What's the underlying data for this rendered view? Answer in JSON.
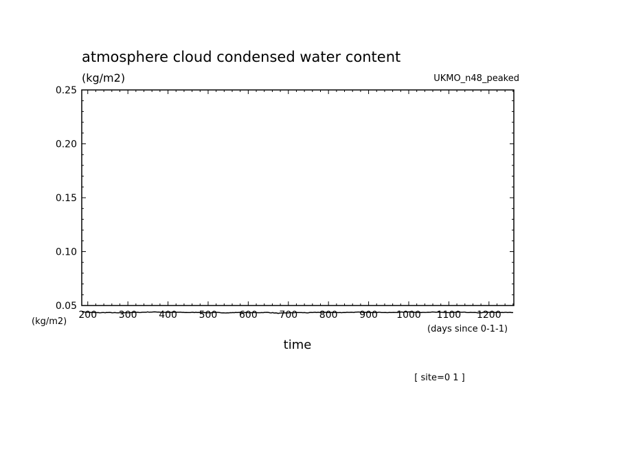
{
  "chart_data": {
    "type": "line",
    "title": "atmosphere cloud condensed water content",
    "units": "(kg/m2)",
    "model_label": "UKMO_n48_peaked",
    "xlabel": "time",
    "x_units": "(days since 0-1-1)",
    "y_side_units": "(kg/m2)",
    "footer": "[ site=0 1 ]",
    "xlim": [
      185,
      1262
    ],
    "ylim": [
      0.05,
      0.25
    ],
    "x_ticks": [
      200,
      300,
      400,
      500,
      600,
      700,
      800,
      900,
      1000,
      1100,
      1200
    ],
    "y_ticks": [
      0.05,
      0.1,
      0.15,
      0.2,
      0.25
    ],
    "y_tick_labels": [
      "0.05",
      "0.10",
      "0.15",
      "0.20",
      "0.25"
    ],
    "grid": false,
    "series": [
      {
        "x": [
          185,
          200,
          225,
          250,
          275,
          300,
          325,
          350,
          375,
          400,
          425,
          450,
          475,
          500,
          525,
          550,
          575,
          600,
          625,
          650,
          675,
          700,
          725,
          750,
          775,
          800,
          825,
          850,
          875,
          900,
          925,
          950,
          975,
          1000,
          1025,
          1050,
          1075,
          1100,
          1125,
          1150,
          1175,
          1200,
          1225,
          1262
        ],
        "y": [
          0.0443,
          0.0437,
          0.0433,
          0.0435,
          0.0432,
          0.0434,
          0.0436,
          0.0439,
          0.044,
          0.0436,
          0.0438,
          0.0435,
          0.0437,
          0.0433,
          0.0435,
          0.0432,
          0.0436,
          0.0433,
          0.0434,
          0.0436,
          0.0428,
          0.0432,
          0.0435,
          0.0433,
          0.0437,
          0.0436,
          0.0434,
          0.0437,
          0.0438,
          0.0435,
          0.0437,
          0.0434,
          0.0437,
          0.0441,
          0.0435,
          0.0439,
          0.0437,
          0.0434,
          0.0438,
          0.0436,
          0.0433,
          0.0437,
          0.0436,
          0.0435
        ]
      }
    ]
  }
}
